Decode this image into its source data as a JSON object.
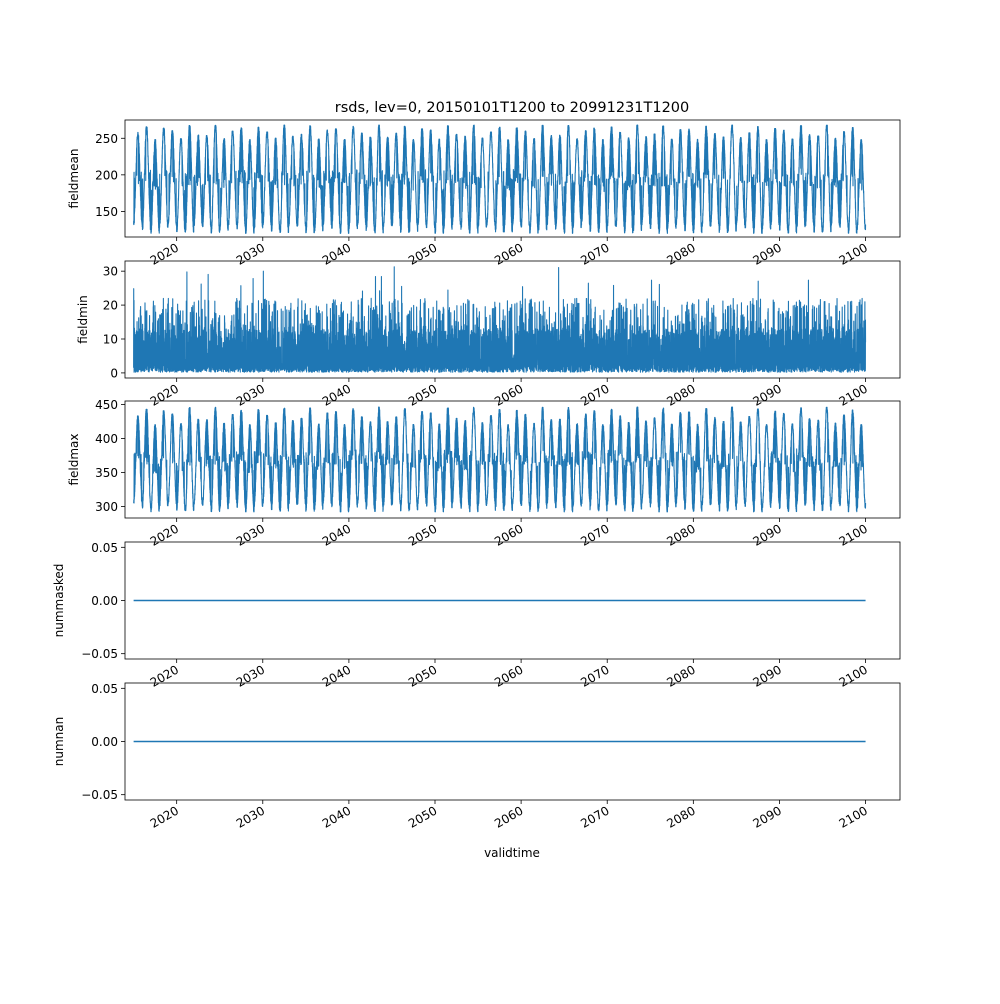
{
  "figure": {
    "title": "rsds, lev=0, 20150101T1200 to 20991231T1200",
    "xlabel": "validtime"
  },
  "style": {
    "line_color": "#1f77b4",
    "axis_color": "#000000"
  },
  "chart_data": [
    {
      "type": "line",
      "ylabel": "fieldmean",
      "xlim": [
        2014.0,
        2104.0
      ],
      "ylim": [
        115,
        275
      ],
      "yticks": [
        150,
        200,
        250
      ],
      "ytick_labels": [
        "150",
        "200",
        "250"
      ],
      "xticks": [
        2020,
        2030,
        2040,
        2050,
        2060,
        2070,
        2080,
        2090,
        2100
      ],
      "xtick_labels": [
        "2020",
        "2030",
        "2040",
        "2050",
        "2060",
        "2070",
        "2080",
        "2090",
        "2100"
      ],
      "series": [
        {
          "x_start": 2015.0,
          "x_end": 2100.0,
          "pattern": "seasonal daily",
          "summer_peak": [
            248,
            268
          ],
          "winter_trough": [
            120,
            132
          ],
          "note_values": "approximate envelope"
        }
      ]
    },
    {
      "type": "line",
      "ylabel": "fieldmin",
      "xlim": [
        2014.0,
        2104.0
      ],
      "ylim": [
        -1.5,
        33
      ],
      "yticks": [
        0,
        10,
        20,
        30
      ],
      "ytick_labels": [
        "0",
        "10",
        "20",
        "30"
      ],
      "xticks": [
        2020,
        2030,
        2040,
        2050,
        2060,
        2070,
        2080,
        2090,
        2100
      ],
      "xtick_labels": [
        "2020",
        "2030",
        "2040",
        "2050",
        "2060",
        "2070",
        "2080",
        "2090",
        "2100"
      ],
      "series": [
        {
          "x_start": 2015.0,
          "x_end": 2100.0,
          "pattern": "noisy daily",
          "baseline": [
            0.2,
            2.5
          ],
          "typical_peak": [
            12,
            22
          ],
          "max": 31.5
        }
      ]
    },
    {
      "type": "line",
      "ylabel": "fieldmax",
      "xlim": [
        2014.0,
        2104.0
      ],
      "ylim": [
        283,
        455
      ],
      "yticks": [
        300,
        350,
        400,
        450
      ],
      "ytick_labels": [
        "300",
        "350",
        "400",
        "450"
      ],
      "xticks": [
        2020,
        2030,
        2040,
        2050,
        2060,
        2070,
        2080,
        2090,
        2100
      ],
      "xtick_labels": [
        "2020",
        "2030",
        "2040",
        "2050",
        "2060",
        "2070",
        "2080",
        "2090",
        "2100"
      ],
      "series": [
        {
          "x_start": 2015.0,
          "x_end": 2100.0,
          "pattern": "seasonal daily",
          "summer_peak": [
            420,
            446
          ],
          "winter_trough": [
            292,
            305
          ]
        }
      ]
    },
    {
      "type": "line",
      "ylabel": "nummasked",
      "xlim": [
        2014.0,
        2104.0
      ],
      "ylim": [
        -0.055,
        0.055
      ],
      "yticks": [
        -0.05,
        0.0,
        0.05
      ],
      "ytick_labels": [
        "−0.05",
        "0.00",
        "0.05"
      ],
      "xticks": [
        2020,
        2030,
        2040,
        2050,
        2060,
        2070,
        2080,
        2090,
        2100
      ],
      "xtick_labels": [
        "2020",
        "2030",
        "2040",
        "2050",
        "2060",
        "2070",
        "2080",
        "2090",
        "2100"
      ],
      "series": [
        {
          "x": [
            2015.0,
            2100.0
          ],
          "y": [
            0.0,
            0.0
          ]
        }
      ]
    },
    {
      "type": "line",
      "ylabel": "numnan",
      "xlim": [
        2014.0,
        2104.0
      ],
      "ylim": [
        -0.055,
        0.055
      ],
      "yticks": [
        -0.05,
        0.0,
        0.05
      ],
      "ytick_labels": [
        "−0.05",
        "0.00",
        "0.05"
      ],
      "xticks": [
        2020,
        2030,
        2040,
        2050,
        2060,
        2070,
        2080,
        2090,
        2100
      ],
      "xtick_labels": [
        "2020",
        "2030",
        "2040",
        "2050",
        "2060",
        "2070",
        "2080",
        "2090",
        "2100"
      ],
      "series": [
        {
          "x": [
            2015.0,
            2100.0
          ],
          "y": [
            0.0,
            0.0
          ]
        }
      ]
    }
  ]
}
